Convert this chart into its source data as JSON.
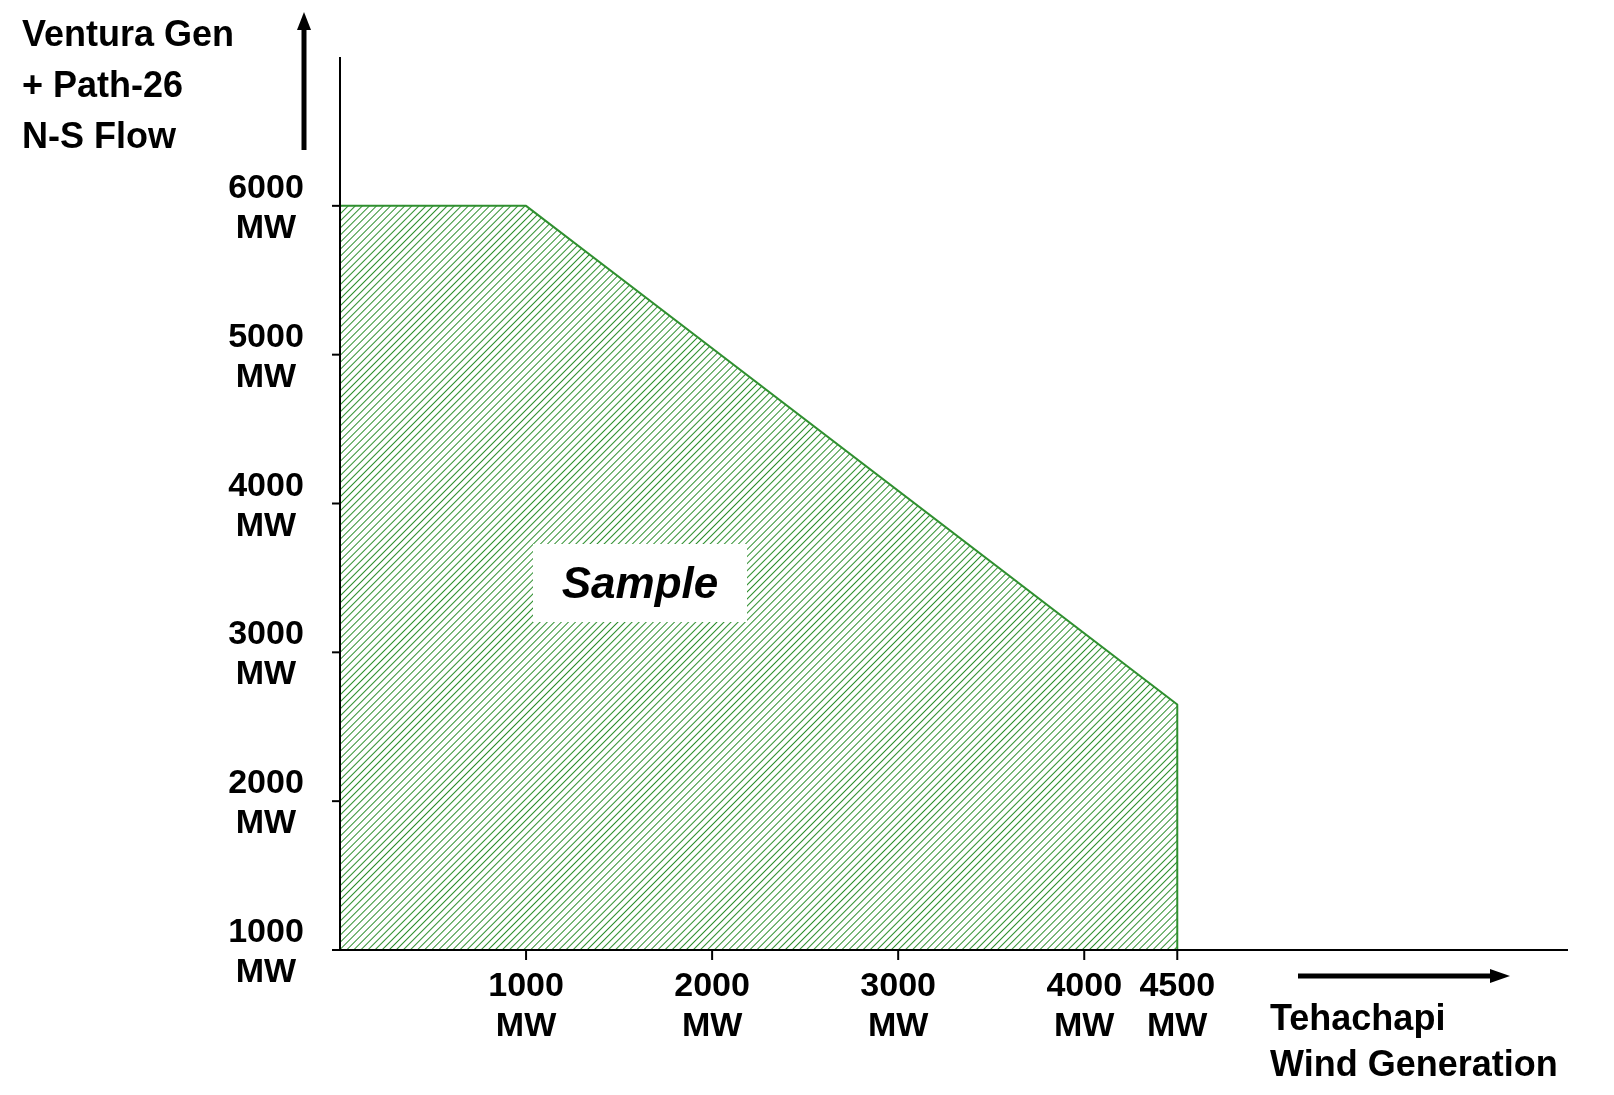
{
  "chart_data": {
    "type": "area",
    "xlabel": "Tehachapi Wind Generation",
    "ylabel": "Ventura Gen + Path-26 N-S Flow",
    "series": [
      {
        "x": [
          0,
          1000,
          4500
        ],
        "values": [
          6000,
          6000,
          2650
        ],
        "color": "#2f8f2f"
      }
    ],
    "xlim": [
      0,
      6600
    ],
    "ylim": [
      1000,
      7000
    ],
    "xticks": [
      {
        "value": 1000,
        "label": "1000 MW"
      },
      {
        "value": 2000,
        "label": "2000 MW"
      },
      {
        "value": 3000,
        "label": "3000 MW"
      },
      {
        "value": 4000,
        "label": "4000 MW"
      },
      {
        "value": 4500,
        "label": "4500 MW"
      }
    ],
    "yticks": [
      {
        "value": 1000,
        "label": "1000 MW"
      },
      {
        "value": 2000,
        "label": "2000 MW"
      },
      {
        "value": 3000,
        "label": "3000 MW"
      },
      {
        "value": 4000,
        "label": "4000 MW"
      },
      {
        "value": 5000,
        "label": "5000 MW"
      },
      {
        "value": 6000,
        "label": "6000 MW"
      }
    ],
    "annotations": [
      "Sample"
    ],
    "grid": false
  }
}
